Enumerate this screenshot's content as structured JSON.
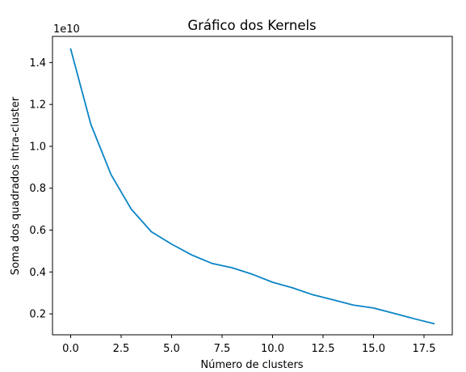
{
  "chart_data": {
    "type": "line",
    "title": "Gráfico dos Kernels",
    "xlabel": "Número de clusters",
    "ylabel": "Soma dos quadrados intra-cluster",
    "offset_text": "1e10",
    "x": [
      0,
      1,
      2,
      3,
      4,
      5,
      6,
      7,
      8,
      9,
      10,
      11,
      12,
      13,
      14,
      15,
      16,
      17,
      18
    ],
    "series": [
      {
        "values": [
          1.465,
          1.105,
          0.865,
          0.7,
          0.592,
          0.533,
          0.481,
          0.441,
          0.42,
          0.389,
          0.351,
          0.324,
          0.291,
          0.267,
          0.242,
          0.228,
          0.203,
          0.177,
          0.153
        ],
        "color": "#0a84c6"
      }
    ],
    "xlim": [
      -0.9,
      18.9
    ],
    "ylim": [
      0.1,
      1.525
    ],
    "xticks": [
      0,
      2.5,
      5,
      7.5,
      10,
      12.5,
      15,
      17.5
    ],
    "xtick_labels": [
      "0.0",
      "2.5",
      "5.0",
      "7.5",
      "10.0",
      "12.5",
      "15.0",
      "17.5"
    ],
    "yticks": [
      0.2,
      0.4,
      0.6,
      0.8,
      1.0,
      1.2,
      1.4
    ],
    "ytick_labels": [
      "0.2",
      "0.4",
      "0.6",
      "0.8",
      "1.0",
      "1.2",
      "1.4"
    ],
    "grid": false
  }
}
